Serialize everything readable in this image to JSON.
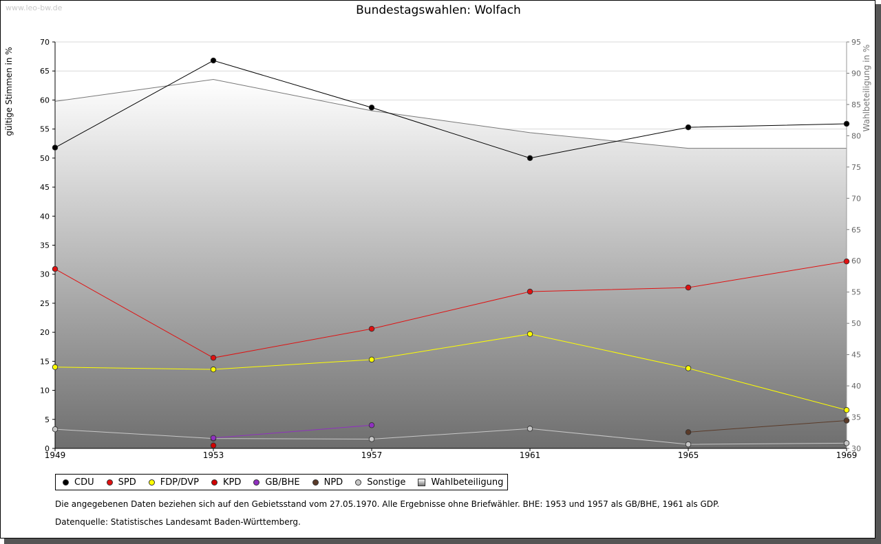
{
  "watermark": "www.leo-bw.de",
  "footer": {
    "note": "Die angegebenen Daten beziehen sich auf den Gebietsstand vom 27.05.1970. Alle Ergebnisse ohne Briefwähler. BHE: 1953 und 1957 als GB/BHE, 1961 als GDP.",
    "source": "Datenquelle: Statistisches Landesamt Baden-Württemberg."
  },
  "chart_data": {
    "type": "line",
    "title": "Bundestagswahlen: Wolfach",
    "ylabel": "gültige Stimmen in %",
    "y2label": "Wahlbeteiligung in %",
    "ylim": [
      0,
      70
    ],
    "y2lim": [
      30,
      95
    ],
    "yticks": [
      0,
      5,
      10,
      15,
      20,
      25,
      30,
      35,
      40,
      45,
      50,
      55,
      60,
      65,
      70
    ],
    "y2ticks": [
      30,
      35,
      40,
      45,
      50,
      55,
      60,
      65,
      70,
      75,
      80,
      85,
      90,
      95
    ],
    "categories": [
      "1949",
      "1953",
      "1957",
      "1961",
      "1965",
      "1969"
    ],
    "series": [
      {
        "name": "CDU",
        "color": "#000000",
        "values": [
          51.8,
          66.8,
          58.7,
          50.0,
          55.3,
          55.9
        ]
      },
      {
        "name": "SPD",
        "color": "#e01010",
        "values": [
          30.9,
          15.6,
          20.6,
          27.0,
          27.7,
          32.2
        ]
      },
      {
        "name": "FDP/DVP",
        "color": "#ffff00",
        "values": [
          14.0,
          13.6,
          15.3,
          19.7,
          13.8,
          6.6
        ]
      },
      {
        "name": "KPD",
        "color": "#d00000",
        "values": [
          null,
          0.5,
          null,
          null,
          null,
          null
        ]
      },
      {
        "name": "GB/BHE",
        "color": "#9030c0",
        "values": [
          null,
          1.8,
          4.0,
          null,
          null,
          null
        ]
      },
      {
        "name": "NPD",
        "color": "#5a3a28",
        "values": [
          null,
          null,
          null,
          null,
          2.8,
          4.8
        ]
      },
      {
        "name": "Sonstige",
        "color": "#c8c8c8",
        "values": [
          3.3,
          1.7,
          1.6,
          3.4,
          0.7,
          0.9
        ]
      }
    ],
    "turnout": {
      "name": "Wahlbeteiligung",
      "values": [
        85.5,
        89.0,
        84.0,
        80.5,
        78.0,
        78.0
      ]
    },
    "legend": [
      "CDU",
      "SPD",
      "FDP/DVP",
      "KPD",
      "GB/BHE",
      "NPD",
      "Sonstige",
      "Wahlbeteiligung"
    ]
  }
}
